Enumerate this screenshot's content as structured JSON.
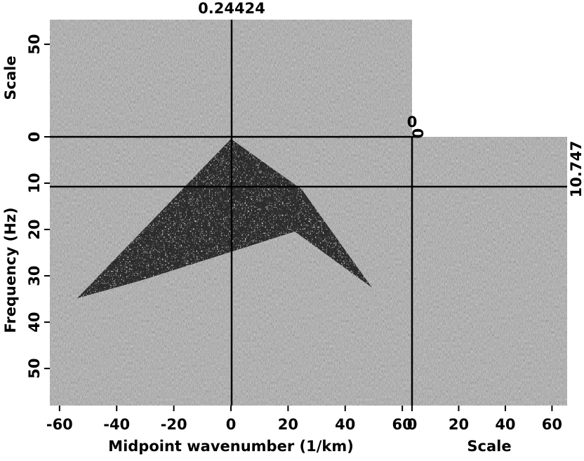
{
  "chart_data": {
    "type": "cube-slice",
    "xlabel": "Midpoint wavenumber (1/km)",
    "ylabel": "Frequency (Hz)",
    "top_label": "Scale",
    "right_label": "Scale",
    "xlim": [
      -63.4,
      63.4
    ],
    "xticks": [
      -60,
      -40,
      -20,
      0,
      20,
      40,
      60
    ],
    "ylim": [
      0,
      58
    ],
    "yticks": [
      0,
      10,
      20,
      30,
      40,
      50
    ],
    "top_ylim": [
      0,
      63.3
    ],
    "top_yticks": [
      0,
      50
    ],
    "right_xlim": [
      0,
      66.5
    ],
    "right_xticks": [
      0,
      20,
      40,
      60
    ],
    "crosshair": {
      "x": 0.24424,
      "y": 10.747,
      "scale": 0
    }
  }
}
